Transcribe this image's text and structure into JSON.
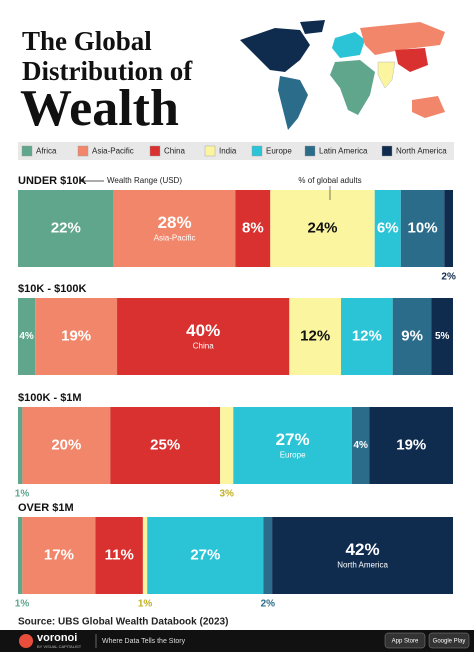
{
  "chart_data": {
    "type": "stacked_hbar",
    "title": [
      "The Global",
      "Distribution of",
      "Wealth"
    ],
    "annotations": [
      "Wealth Range (USD)",
      "% of global adults"
    ],
    "categories": [
      "UNDER $10K",
      "$10K - $100K",
      "$100K - $1M",
      "OVER $1M"
    ],
    "series": [
      {
        "name": "Africa",
        "color": "#5fa68c",
        "values": [
          22,
          4,
          1,
          1
        ],
        "value_labels": [
          "22%",
          "4%",
          "1%",
          "1%"
        ]
      },
      {
        "name": "Asia-Pacific",
        "color": "#f2866a",
        "values": [
          28,
          19,
          20,
          17
        ],
        "value_labels": [
          "28%",
          "19%",
          "20%",
          "17%"
        ]
      },
      {
        "name": "China",
        "color": "#d9312f",
        "values": [
          8,
          40,
          25,
          11
        ],
        "value_labels": [
          "8%",
          "40%",
          "25%",
          "11%"
        ]
      },
      {
        "name": "India",
        "color": "#fbf5a0",
        "values": [
          24,
          12,
          3,
          1
        ],
        "value_labels": [
          "24%",
          "12%",
          "3%",
          "1%"
        ]
      },
      {
        "name": "Europe",
        "color": "#2bc4d6",
        "values": [
          6,
          12,
          27,
          27
        ],
        "value_labels": [
          "6%",
          "12%",
          "27%",
          "27%"
        ]
      },
      {
        "name": "Latin America",
        "color": "#2b6c8a",
        "values": [
          10,
          9,
          4,
          2
        ],
        "value_labels": [
          "10%",
          "9%",
          "4%",
          "2%"
        ]
      },
      {
        "name": "North America",
        "color": "#0f2c4f",
        "values": [
          2,
          5,
          19,
          42
        ],
        "value_labels": [
          "2%",
          "5%",
          "19%",
          "42%"
        ]
      }
    ],
    "source": "Source: UBS Global Wealth Databook (2023)"
  },
  "footer": {
    "brand": "voronoi",
    "byline": "BY VISUAL CAPITALIST",
    "tagline": "Where Data Tells the Story",
    "stores": [
      "App Store",
      "Google Play"
    ]
  }
}
